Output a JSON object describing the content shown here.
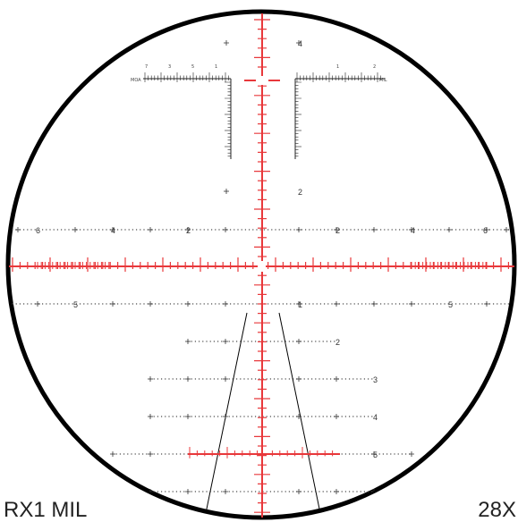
{
  "reticle": {
    "name": "RX1 MIL",
    "magnification": "28X",
    "colors": {
      "ring": "#000000",
      "crosshair": "#e8383b",
      "dots": "#555555"
    },
    "upper_scale": {
      "left_numbers": [
        "7",
        "3",
        "5",
        "1"
      ],
      "right_numbers": [
        "1",
        "2"
      ],
      "left_unit": "MOA",
      "right_unit": "MIL"
    },
    "upper_label": "4",
    "mid_label": "2",
    "holdover_row": [
      "6",
      "4",
      "2",
      "2",
      "4",
      "6"
    ],
    "row_5": [
      "5",
      "1",
      "5"
    ],
    "lower_labels": [
      "2",
      "3",
      "4",
      "5"
    ]
  }
}
